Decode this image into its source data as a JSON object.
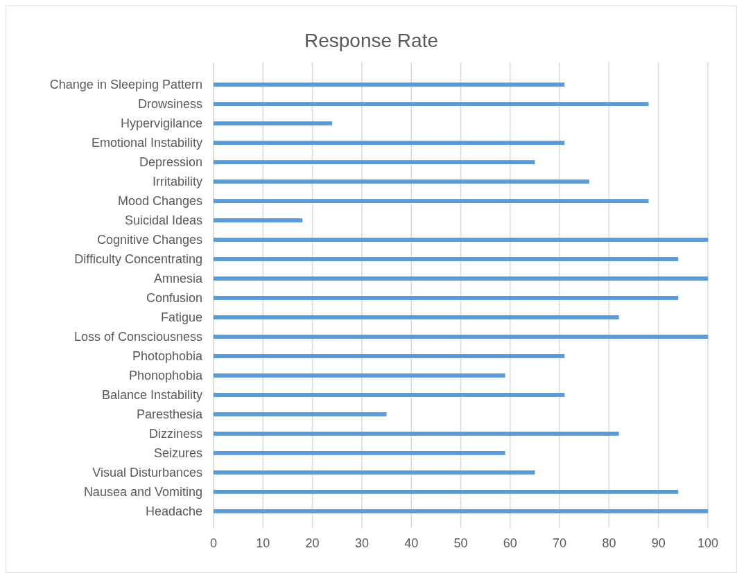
{
  "chart_data": {
    "type": "bar",
    "orientation": "horizontal",
    "title": "Response Rate",
    "categories": [
      "Change in Sleeping Pattern",
      "Drowsiness",
      "Hypervigilance",
      "Emotional Instability",
      "Depression",
      "Irritability",
      "Mood Changes",
      "Suicidal Ideas",
      "Cognitive Changes",
      "Difficulty Concentrating",
      "Amnesia",
      "Confusion",
      "Fatigue",
      "Loss of Consciousness",
      "Photophobia",
      "Phonophobia",
      "Balance Instability",
      "Paresthesia",
      "Dizziness",
      "Seizures",
      "Visual Disturbances",
      "Nausea and Vomiting",
      "Headache"
    ],
    "values": [
      71,
      88,
      24,
      71,
      65,
      76,
      88,
      18,
      100,
      94,
      100,
      94,
      82,
      100,
      71,
      59,
      71,
      35,
      82,
      59,
      65,
      94,
      100
    ],
    "color": "#5b9bd5",
    "xlim": [
      0,
      100
    ],
    "xticks": [
      0,
      10,
      20,
      30,
      40,
      50,
      60,
      70,
      80,
      90,
      100
    ],
    "grid": "x"
  }
}
